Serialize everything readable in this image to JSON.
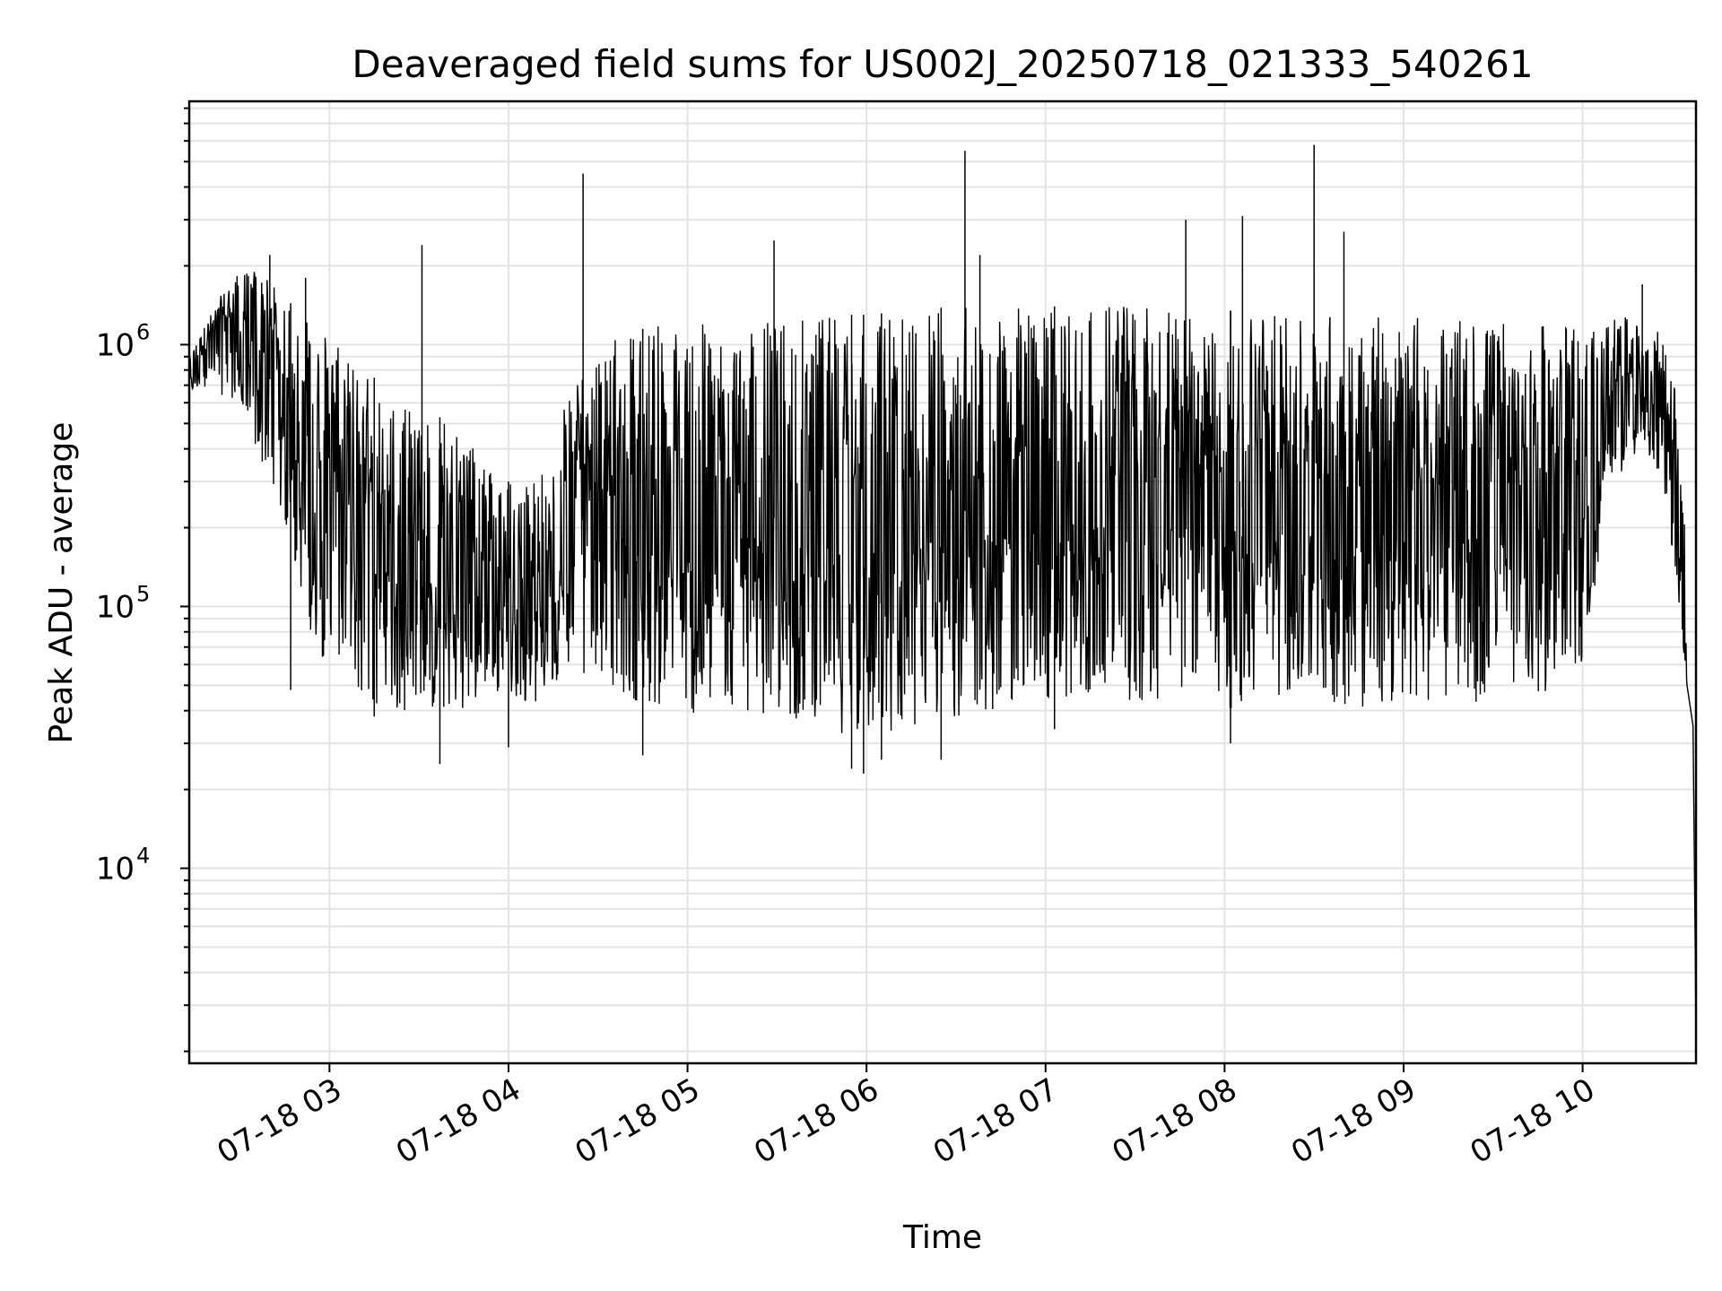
{
  "chart_data": {
    "type": "line",
    "title": "Deaveraged field sums for US002J_20250718_021333_540261",
    "xlabel": "Time",
    "ylabel": "Peak ADU - average",
    "yscale": "log",
    "xlim": [
      "07-18 02:13",
      "07-18 10:38"
    ],
    "ylim": [
      1800,
      8500000
    ],
    "x_tick_labels": [
      "07-18 03",
      "07-18 04",
      "07-18 05",
      "07-18 06",
      "07-18 07",
      "07-18 08",
      "07-18 09",
      "07-18 10"
    ],
    "y_tick_labels": [
      {
        "base": "10",
        "exp": "4"
      },
      {
        "base": "10",
        "exp": "5"
      },
      {
        "base": "10",
        "exp": "6"
      }
    ],
    "grid": true,
    "legend": "none",
    "line_color": "#000000",
    "series": [
      {
        "x": [
          "07-18 02:13",
          "07-18 02:20",
          "07-18 02:27",
          "07-18 02:34",
          "07-18 02:41",
          "07-18 02:48",
          "07-18 02:55",
          "07-18 03:02",
          "07-18 03:10",
          "07-18 03:20",
          "07-18 03:30",
          "07-18 03:40",
          "07-18 03:50",
          "07-18 04:00",
          "07-18 04:10",
          "07-18 04:20",
          "07-18 04:30",
          "07-18 04:40",
          "07-18 04:50",
          "07-18 05:00",
          "07-18 05:15",
          "07-18 05:30",
          "07-18 05:45",
          "07-18 06:00",
          "07-18 06:15",
          "07-18 06:30",
          "07-18 06:45",
          "07-18 07:00",
          "07-18 07:15",
          "07-18 07:30",
          "07-18 07:45",
          "07-18 08:00",
          "07-18 08:15",
          "07-18 08:30",
          "07-18 08:45",
          "07-18 09:00",
          "07-18 09:15",
          "07-18 09:30",
          "07-18 09:45",
          "07-18 10:00",
          "07-18 10:10",
          "07-18 10:20",
          "07-18 10:27",
          "07-18 10:32",
          "07-18 10:35",
          "07-18 10:37",
          "07-18 10:38"
        ],
        "low": [
          650000,
          700000,
          600000,
          400000,
          300000,
          150000,
          70000,
          55000,
          45000,
          40000,
          38000,
          40000,
          42000,
          45000,
          42000,
          60000,
          50000,
          45000,
          40000,
          38000,
          40000,
          38000,
          35000,
          30000,
          35000,
          38000,
          40000,
          42000,
          45000,
          40000,
          45000,
          40000,
          45000,
          45000,
          40000,
          42000,
          40000,
          45000,
          45000,
          60000,
          300000,
          400000,
          300000,
          100000,
          50000,
          35000,
          2500
        ],
        "high": [
          900000,
          1300000,
          1800000,
          2000000,
          1700000,
          1400000,
          1200000,
          1000000,
          800000,
          700000,
          600000,
          500000,
          400000,
          300000,
          300000,
          700000,
          1000000,
          1100000,
          1200000,
          1200000,
          1200000,
          1250000,
          1300000,
          1300000,
          1350000,
          1400000,
          1400000,
          1400000,
          1400000,
          1400000,
          1350000,
          1350000,
          1350000,
          1300000,
          1300000,
          1300000,
          1250000,
          1200000,
          1200000,
          1200000,
          1250000,
          1300000,
          1100000,
          600000,
          150000,
          60000,
          20000
        ]
      }
    ],
    "spikes": [
      {
        "x": "07-18 02:40",
        "y": 2200000
      },
      {
        "x": "07-18 02:52",
        "y": 1800000
      },
      {
        "x": "07-18 03:31",
        "y": 2400000
      },
      {
        "x": "07-18 04:25",
        "y": 4500000
      },
      {
        "x": "07-18 05:29",
        "y": 2500000
      },
      {
        "x": "07-18 06:33",
        "y": 5500000
      },
      {
        "x": "07-18 06:38",
        "y": 2200000
      },
      {
        "x": "07-18 07:47",
        "y": 3000000
      },
      {
        "x": "07-18 08:06",
        "y": 3100000
      },
      {
        "x": "07-18 08:30",
        "y": 5800000
      },
      {
        "x": "07-18 08:40",
        "y": 2700000
      },
      {
        "x": "07-18 10:20",
        "y": 1700000
      }
    ],
    "dips": [
      {
        "x": "07-18 02:47",
        "y": 48000
      },
      {
        "x": "07-18 03:15",
        "y": 38000
      },
      {
        "x": "07-18 03:37",
        "y": 25000
      },
      {
        "x": "07-18 04:00",
        "y": 29000
      },
      {
        "x": "07-18 04:45",
        "y": 27000
      },
      {
        "x": "07-18 05:55",
        "y": 24000
      },
      {
        "x": "07-18 05:59",
        "y": 23000
      },
      {
        "x": "07-18 06:05",
        "y": 26000
      },
      {
        "x": "07-18 06:25",
        "y": 26000
      },
      {
        "x": "07-18 07:03",
        "y": 34000
      },
      {
        "x": "07-18 08:02",
        "y": 30000
      }
    ]
  }
}
